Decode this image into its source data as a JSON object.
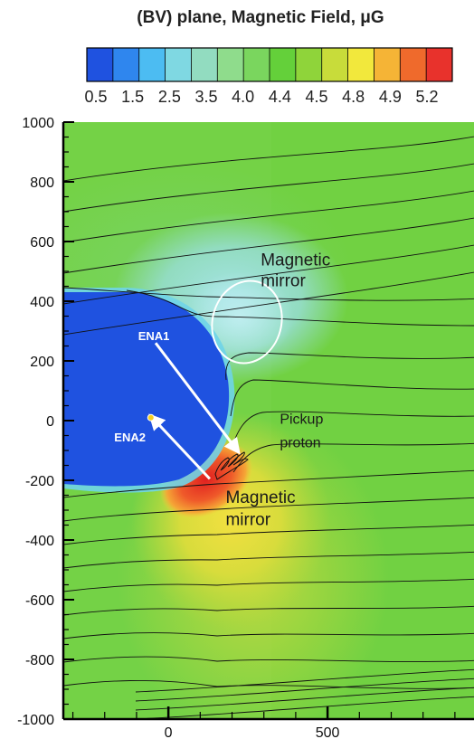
{
  "chart_data": {
    "type": "heatmap",
    "title": "(BV) plane, Magnetic Field, μG",
    "xlabel": "",
    "ylabel": "",
    "xlim": [
      -330,
      960
    ],
    "ylim": [
      -1000,
      1000
    ],
    "x_ticks": [
      0,
      500
    ],
    "x_tick_labels": [
      "0",
      "500"
    ],
    "y_ticks": [
      1000,
      800,
      600,
      400,
      200,
      0,
      -200,
      -400,
      -600,
      -800,
      -1000
    ],
    "y_tick_labels": [
      "1000",
      "800",
      "600",
      "400",
      "200",
      "0",
      "-200",
      "-400",
      "-600",
      "-800",
      "-1000"
    ],
    "colorbar": {
      "levels": [
        "0.5",
        "1.5",
        "2.5",
        "3.5",
        "4.0",
        "4.4",
        "4.5",
        "4.8",
        "4.9",
        "5.2"
      ],
      "colors": [
        "#1f52e0",
        "#2f86ee",
        "#4cbcf2",
        "#7fd8e2",
        "#92dcc0",
        "#8fdc8c",
        "#7ad65e",
        "#64d03a",
        "#8fd43a",
        "#c8dc3a",
        "#f2e83c",
        "#f5b436",
        "#ef6a2c",
        "#e8322c"
      ]
    },
    "field_lines": "streamlines flowing right to left",
    "annotations": [
      {
        "text": "Magnetic",
        "x": 290,
        "y": 520
      },
      {
        "text": "mirror",
        "x": 290,
        "y": 450
      },
      {
        "text": "Magnetic",
        "x": 180,
        "y": -275
      },
      {
        "text": "mirror",
        "x": 180,
        "y": -350
      },
      {
        "text": "Pickup",
        "x": 350,
        "y": -10
      },
      {
        "text": "proton",
        "x": 350,
        "y": -90
      },
      {
        "text": "ENA1",
        "x": -95,
        "y": 270
      },
      {
        "text": "ENA2",
        "x": -170,
        "y": -70
      }
    ],
    "points": [
      {
        "label": "ENA2",
        "x": -55,
        "y": 10
      }
    ],
    "arrows": [
      {
        "from": [
          -40,
          260
        ],
        "to": [
          220,
          -105
        ]
      },
      {
        "from": [
          130,
          -195
        ],
        "to": [
          -55,
          15
        ]
      }
    ]
  }
}
